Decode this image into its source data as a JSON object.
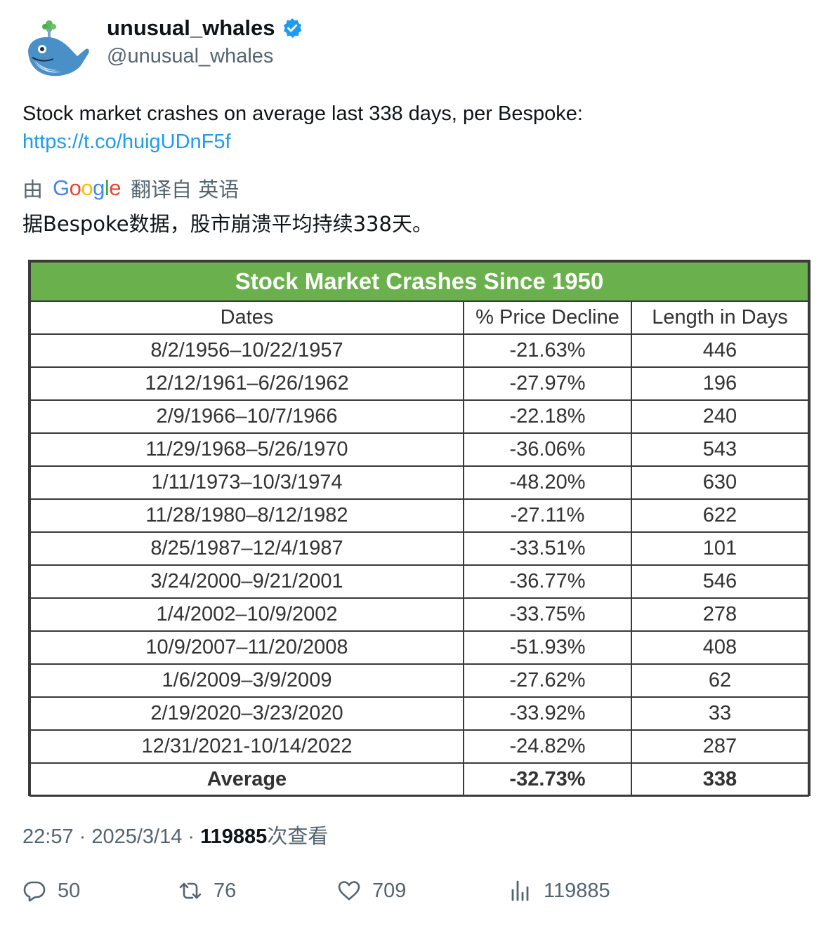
{
  "author": {
    "display_name": "unusual_whales",
    "handle": "@unusual_whales"
  },
  "tweet": {
    "text": "Stock market crashes on average last 338 days, per Bespoke:",
    "link": "https://t.co/huigUDnF5f"
  },
  "translation": {
    "by": "由",
    "provider": "Google",
    "from_label": "翻译自 英语",
    "text": "据Bespoke数据，股市崩溃平均持续338天。"
  },
  "table": {
    "title": "Stock Market Crashes Since 1950",
    "headers": [
      "Dates",
      "% Price Decline",
      "Length in Days"
    ],
    "rows": [
      [
        "8/2/1956–10/22/1957",
        "-21.63%",
        "446"
      ],
      [
        "12/12/1961–6/26/1962",
        "-27.97%",
        "196"
      ],
      [
        "2/9/1966–10/7/1966",
        "-22.18%",
        "240"
      ],
      [
        "11/29/1968–5/26/1970",
        "-36.06%",
        "543"
      ],
      [
        "1/11/1973–10/3/1974",
        "-48.20%",
        "630"
      ],
      [
        "11/28/1980–8/12/1982",
        "-27.11%",
        "622"
      ],
      [
        "8/25/1987–12/4/1987",
        "-33.51%",
        "101"
      ],
      [
        "3/24/2000–9/21/2001",
        "-36.77%",
        "546"
      ],
      [
        "1/4/2002–10/9/2002",
        "-33.75%",
        "278"
      ],
      [
        "10/9/2007–11/20/2008",
        "-51.93%",
        "408"
      ],
      [
        "1/6/2009–3/9/2009",
        "-27.62%",
        "62"
      ],
      [
        "2/19/2020–3/23/2020",
        "-33.92%",
        "33"
      ],
      [
        "12/31/2021-10/14/2022",
        "-24.82%",
        "287"
      ]
    ],
    "average": [
      "Average",
      "-32.73%",
      "338"
    ],
    "colors": {
      "title_bg": "#6ab04c",
      "title_text": "#ffffff",
      "border": "#3a3a3a"
    }
  },
  "meta": {
    "time_date": "22:57 · 2025/3/14 · ",
    "views_count": "119885",
    "views_suffix": "次查看"
  },
  "actions": {
    "replies": "50",
    "retweets": "76",
    "likes": "709",
    "views": "119885"
  },
  "icons": [
    "whale-avatar",
    "verified-badge-icon",
    "reply-icon",
    "retweet-icon",
    "like-icon",
    "views-chart-icon"
  ],
  "colors": {
    "link": "#1d9bf0",
    "verified": "#1d9bf0",
    "muted": "#536471"
  }
}
